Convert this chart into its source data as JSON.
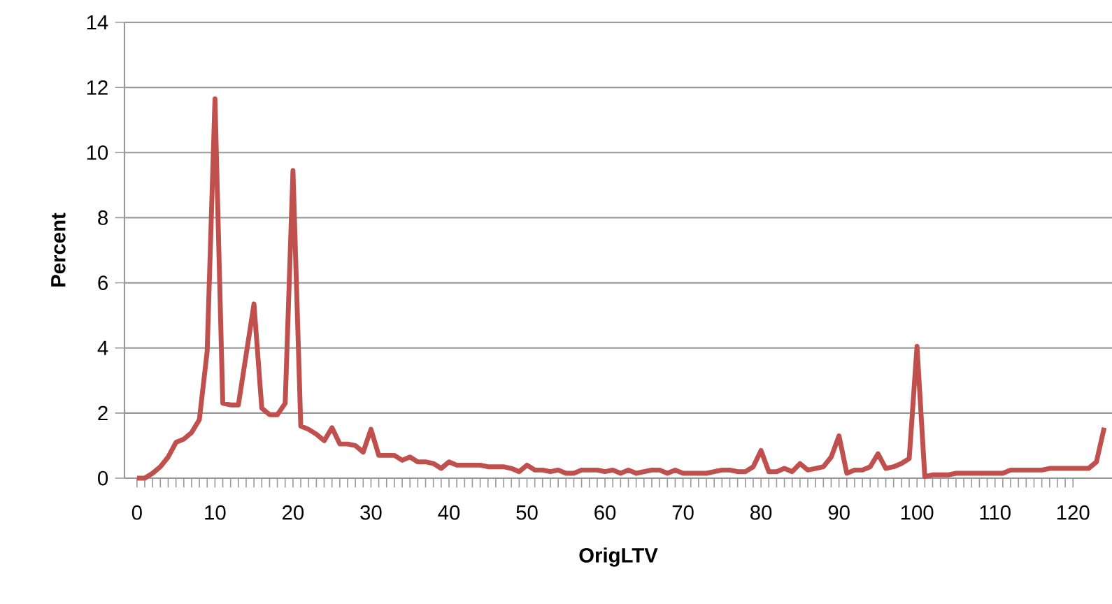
{
  "chart_data": {
    "type": "line",
    "xlabel": "OrigLTV",
    "ylabel": "Percent",
    "x": [
      0,
      1,
      2,
      3,
      4,
      5,
      6,
      7,
      8,
      9,
      10,
      11,
      12,
      13,
      14,
      15,
      16,
      17,
      18,
      19,
      20,
      21,
      22,
      23,
      24,
      25,
      26,
      27,
      28,
      29,
      30,
      31,
      32,
      33,
      34,
      35,
      36,
      37,
      38,
      39,
      40,
      41,
      42,
      43,
      44,
      45,
      46,
      47,
      48,
      49,
      50,
      51,
      52,
      53,
      54,
      55,
      56,
      57,
      58,
      59,
      60,
      61,
      62,
      63,
      64,
      65,
      66,
      67,
      68,
      69,
      70,
      71,
      72,
      73,
      74,
      75,
      76,
      77,
      78,
      79,
      80,
      81,
      82,
      83,
      84,
      85,
      86,
      87,
      88,
      89,
      90,
      91,
      92,
      93,
      94,
      95,
      96,
      97,
      98,
      99,
      100,
      101,
      102,
      103,
      104,
      105,
      106,
      107,
      108,
      109,
      110,
      111,
      112,
      113,
      114,
      115,
      116,
      117,
      118,
      119,
      120,
      121,
      122,
      123,
      124
    ],
    "series": [
      {
        "color": "#c0504d",
        "values": [
          0,
          0,
          0.15,
          0.35,
          0.65,
          1.1,
          1.2,
          1.4,
          1.8,
          3.9,
          11.65,
          2.3,
          2.25,
          2.25,
          3.8,
          5.35,
          2.15,
          1.95,
          1.95,
          2.3,
          9.45,
          1.6,
          1.5,
          1.35,
          1.15,
          1.55,
          1.05,
          1.05,
          1.0,
          0.8,
          1.5,
          0.7,
          0.7,
          0.7,
          0.55,
          0.65,
          0.5,
          0.5,
          0.45,
          0.3,
          0.5,
          0.4,
          0.4,
          0.4,
          0.4,
          0.35,
          0.35,
          0.35,
          0.3,
          0.2,
          0.4,
          0.25,
          0.25,
          0.2,
          0.25,
          0.15,
          0.15,
          0.25,
          0.25,
          0.25,
          0.2,
          0.25,
          0.15,
          0.25,
          0.15,
          0.2,
          0.25,
          0.25,
          0.15,
          0.25,
          0.15,
          0.15,
          0.15,
          0.15,
          0.2,
          0.25,
          0.25,
          0.2,
          0.2,
          0.35,
          0.85,
          0.2,
          0.2,
          0.3,
          0.2,
          0.45,
          0.25,
          0.3,
          0.35,
          0.65,
          1.3,
          0.15,
          0.25,
          0.25,
          0.35,
          0.75,
          0.3,
          0.35,
          0.45,
          0.6,
          4.05,
          0.05,
          0.1,
          0.1,
          0.1,
          0.15,
          0.15,
          0.15,
          0.15,
          0.15,
          0.15,
          0.15,
          0.25,
          0.25,
          0.25,
          0.25,
          0.25,
          0.3,
          0.3,
          0.3,
          0.3,
          0.3,
          0.3,
          0.5,
          1.55
        ]
      }
    ],
    "xlim": [
      -1.6,
      125
    ],
    "xticks": [
      0,
      10,
      20,
      30,
      40,
      50,
      60,
      70,
      80,
      90,
      100,
      110,
      120
    ],
    "ylim": [
      0,
      14
    ],
    "yticks": [
      0,
      2,
      4,
      6,
      8,
      10,
      12,
      14
    ],
    "grid": "y",
    "marker": "none",
    "line_style": "solid"
  }
}
